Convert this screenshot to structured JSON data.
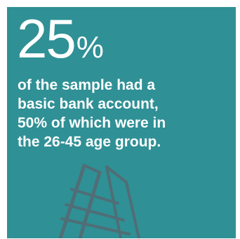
{
  "stat": {
    "number": "25",
    "unit": "%"
  },
  "caption": {
    "lines": [
      "of the sample had a",
      "basic bank account,",
      "50% of which were in",
      "the 26-45 age group."
    ]
  },
  "colors": {
    "panel_background": "#2f9095",
    "text": "#ffffff",
    "ladder": "#4f6e76"
  },
  "illustration": {
    "icon": "ladder-icon"
  }
}
